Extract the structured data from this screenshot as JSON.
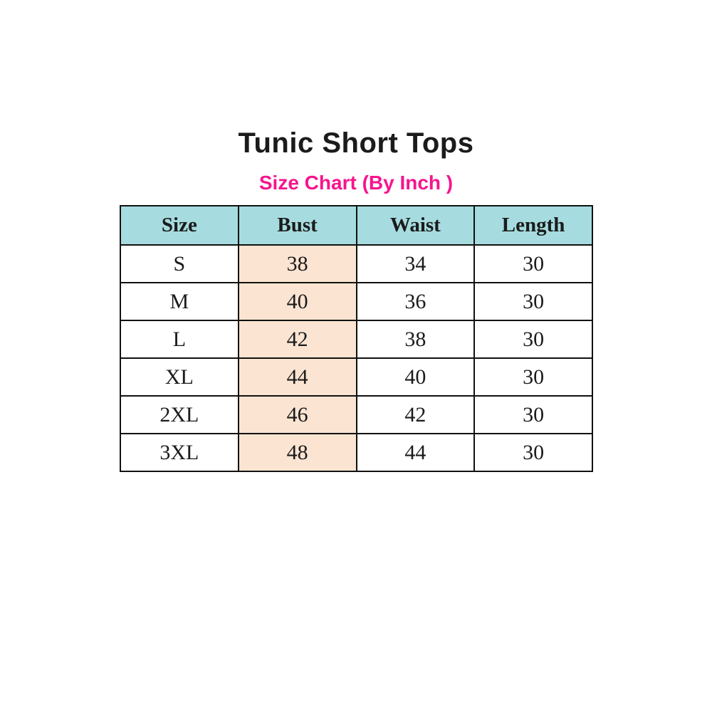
{
  "colors": {
    "page_background": "#ffffff",
    "title_text": "#1b1b1b",
    "subtitle_text": "#f7148d",
    "header_row_fill": "#a6dcdf",
    "bust_column_fill": "#fbe4d1",
    "table_border": "#111111",
    "cell_text": "#1b1b1b"
  },
  "chart_data": {
    "type": "table",
    "title": "Tunic Short Tops",
    "subtitle": "Size Chart (By Inch )",
    "unit": "inch",
    "columns": [
      "Size",
      "Bust",
      "Waist",
      "Length"
    ],
    "rows": [
      [
        "S",
        "38",
        "34",
        "30"
      ],
      [
        "M",
        "40",
        "36",
        "30"
      ],
      [
        "L",
        "42",
        "38",
        "30"
      ],
      [
        "XL",
        "44",
        "40",
        "30"
      ],
      [
        "2XL",
        "46",
        "42",
        "30"
      ],
      [
        "3XL",
        "48",
        "44",
        "30"
      ]
    ],
    "highlighted_column": "Bust",
    "layout": {
      "header_fill": "#a6dcdf",
      "highlight_fill": "#fbe4d1",
      "grid": "black 2px all borders",
      "alignment": "center"
    }
  }
}
